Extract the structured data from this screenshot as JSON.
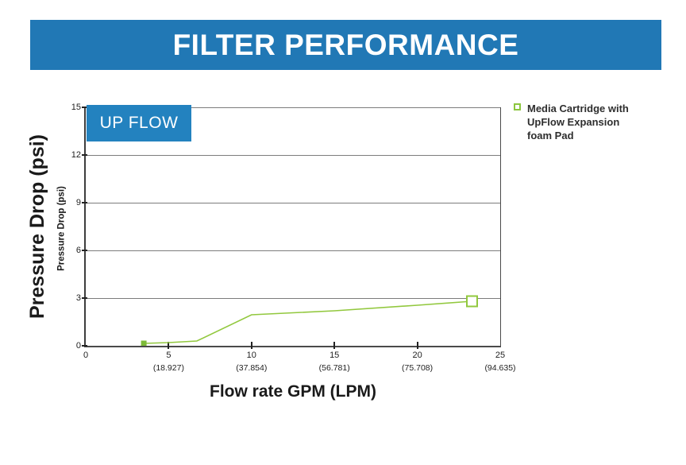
{
  "banner": {
    "title": "FILTER PERFORMANCE",
    "bg_color": "#2178B5",
    "text_color": "#FFFFFF"
  },
  "chart": {
    "overlay_label": "UP FLOW",
    "overlay_bg_color": "#2382BF",
    "ylabel_outer": "Pressure Drop (psi)",
    "ylabel_inner": "Pressure Drop (psi)",
    "xlabel": "Flow rate GPM (LPM)",
    "legend": {
      "marker": "open-green-square",
      "marker_color": "#8CC63F",
      "label_lines": [
        "Media Cartridge with",
        "UpFlow Expansion",
        "foam Pad"
      ]
    }
  },
  "chart_data": {
    "type": "line",
    "title": "FILTER PERFORMANCE",
    "xlabel": "Flow rate GPM (LPM)",
    "ylabel": "Pressure Drop (psi)",
    "xlim": [
      0,
      25
    ],
    "ylim": [
      0,
      15
    ],
    "grid": "horizontal",
    "legend_position": "top-right",
    "yticks": [
      0,
      3,
      6,
      9,
      12,
      15
    ],
    "xticks": [
      {
        "value": 0,
        "gpm": "0",
        "lpm": ""
      },
      {
        "value": 5,
        "gpm": "5",
        "lpm": "(18.927)"
      },
      {
        "value": 10,
        "gpm": "10",
        "lpm": "(37.854)"
      },
      {
        "value": 15,
        "gpm": "15",
        "lpm": "(56.781)"
      },
      {
        "value": 20,
        "gpm": "20",
        "lpm": "(75.708)"
      },
      {
        "value": 25,
        "gpm": "25",
        "lpm": "(94.635)"
      }
    ],
    "series": [
      {
        "name": "Media Cartridge with UpFlow Expansion foam Pad",
        "color": "#92C83E",
        "start_marker": "small-filled-square",
        "start_marker_color": "#7DBB38",
        "end_marker": "large-open-square",
        "points_gpm_psi": [
          [
            3.5,
            0.15
          ],
          [
            5,
            0.2
          ],
          [
            6.7,
            0.3
          ],
          [
            10,
            1.95
          ],
          [
            15,
            2.2
          ],
          [
            20,
            2.55
          ],
          [
            23.3,
            2.8
          ]
        ]
      }
    ]
  }
}
